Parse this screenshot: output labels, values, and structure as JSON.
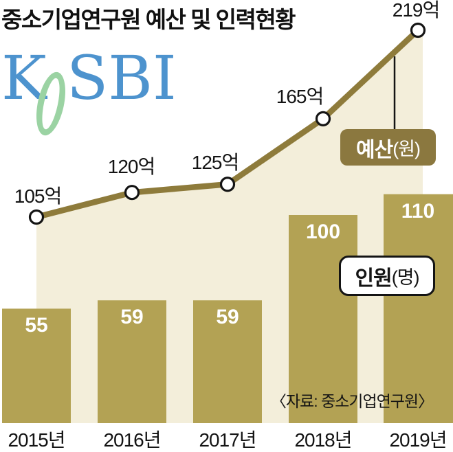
{
  "title": "중소기업연구원 예산 및 인력현황",
  "logo": {
    "k": "K",
    "sbi": "SBI",
    "blue": "#4d93ce",
    "green": "#9bd3a3"
  },
  "colors": {
    "bar": "#b3a254",
    "area_fill": "#f3eeda",
    "line": "#8e7b3b",
    "marker_fill": "#ffffff",
    "marker_stroke": "#141414",
    "badge_bg": "#8b783f",
    "text": "#141414"
  },
  "legend": {
    "budget_badge": {
      "label_bold": "예산",
      "label_unit": "(원)"
    },
    "people_badge": {
      "label_bold": "인원",
      "label_unit": "(명)"
    }
  },
  "source_note": "〈자료: 중소기업연구원〉",
  "chart_data": {
    "type": "combo",
    "title": "중소기업연구원 예산 및 인력현황",
    "categories": [
      "2015년",
      "2016년",
      "2017년",
      "2018년",
      "2019년"
    ],
    "series": [
      {
        "name": "예산(원)",
        "type": "line",
        "unit": "억",
        "values": [
          105,
          120,
          125,
          165,
          219
        ],
        "labels": [
          "105억",
          "120억",
          "125억",
          "165억",
          "219억"
        ]
      },
      {
        "name": "인원(명)",
        "type": "bar",
        "unit": "명",
        "values": [
          55,
          59,
          59,
          100,
          110
        ],
        "labels": [
          "55",
          "59",
          "59",
          "100",
          "110"
        ]
      }
    ],
    "legend_position": "inline-badges",
    "grid": false,
    "source": "〈자료: 중소기업연구원〉"
  }
}
